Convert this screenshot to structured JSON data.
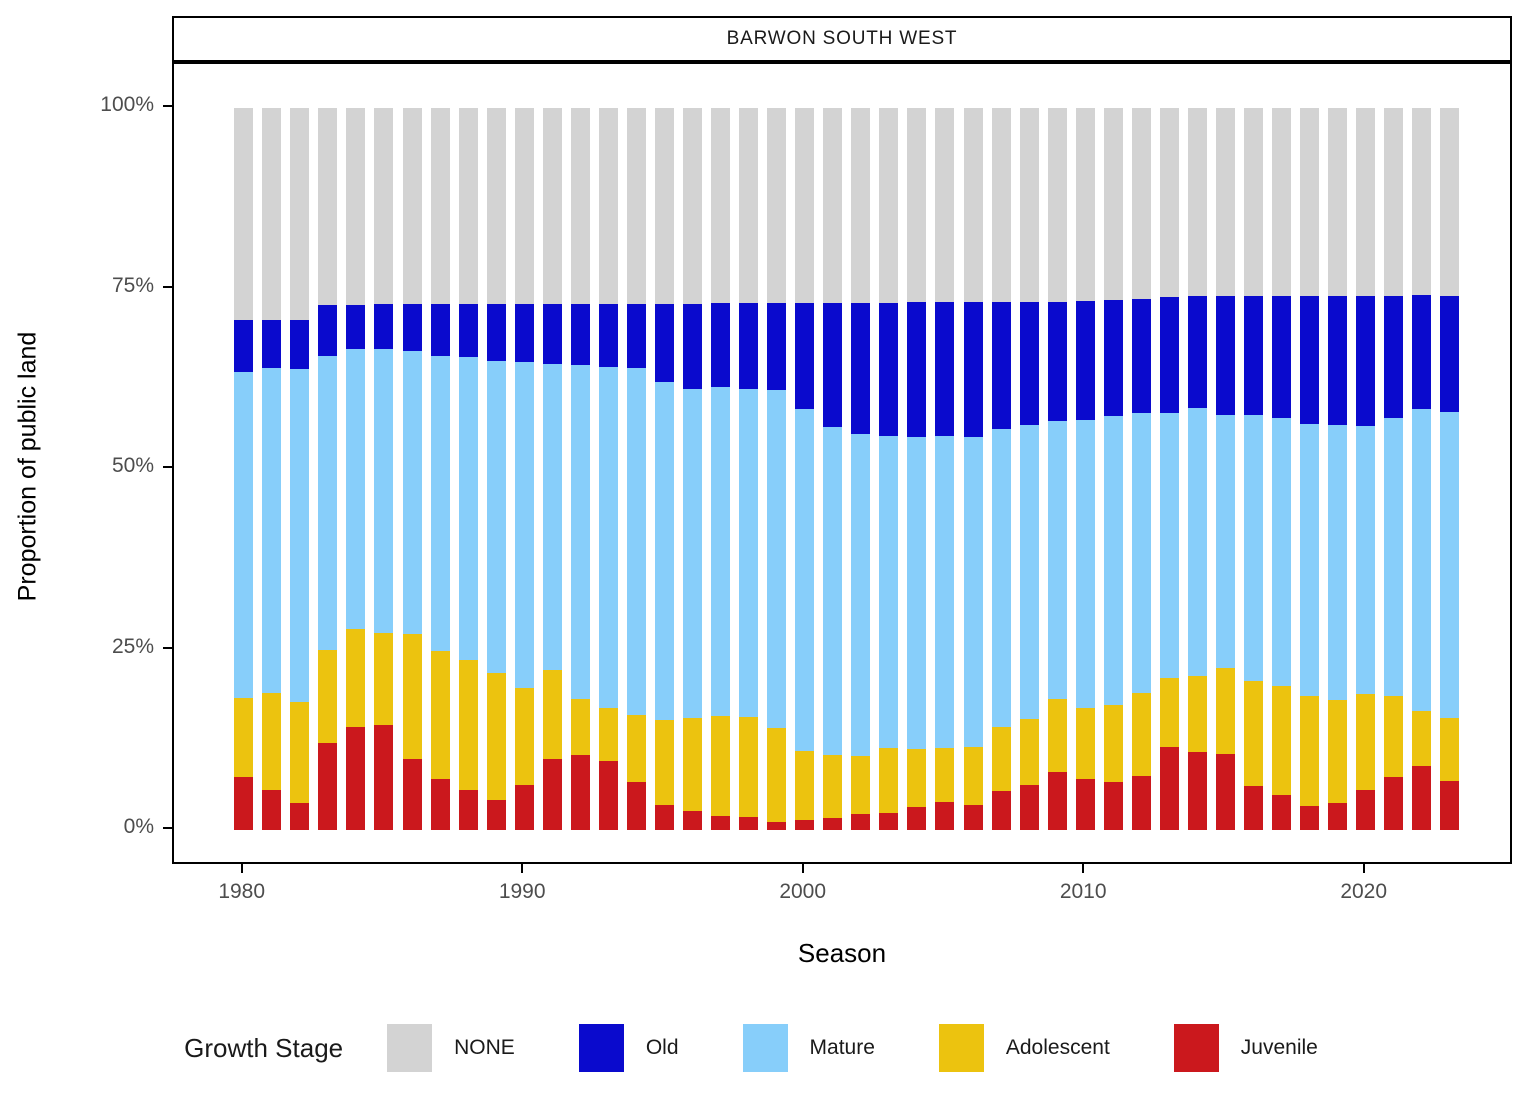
{
  "panel_title": "BARWON SOUTH WEST",
  "y_axis": {
    "title": "Proportion of public land",
    "tick_labels": [
      "0%",
      "25%",
      "50%",
      "75%",
      "100%"
    ],
    "tick_values": [
      0,
      25,
      50,
      75,
      100
    ]
  },
  "x_axis": {
    "title": "Season",
    "tick_labels": [
      "1980",
      "1990",
      "2000",
      "2010",
      "2020"
    ],
    "tick_values": [
      1980,
      1990,
      2000,
      2010,
      2020
    ]
  },
  "legend": {
    "title": "Growth Stage",
    "items": [
      {
        "label": "NONE",
        "color": "#d3d3d3"
      },
      {
        "label": "Old",
        "color": "#0a0acd"
      },
      {
        "label": "Mature",
        "color": "#87cefa"
      },
      {
        "label": "Adolescent",
        "color": "#ecc30f"
      },
      {
        "label": "Juvenile",
        "color": "#cb181d"
      }
    ]
  },
  "chart_data": {
    "type": "bar",
    "stacked": true,
    "title": "BARWON SOUTH WEST",
    "xlabel": "Season",
    "ylabel": "Proportion of public land",
    "ylim": [
      0,
      100
    ],
    "grid": false,
    "legend_position": "bottom",
    "units": "percent",
    "stack_order_bottom_to_top": [
      "Juvenile",
      "Adolescent",
      "Mature",
      "Old",
      "NONE"
    ],
    "x": [
      1980,
      1981,
      1982,
      1983,
      1984,
      1985,
      1986,
      1987,
      1988,
      1989,
      1990,
      1991,
      1992,
      1993,
      1994,
      1995,
      1996,
      1997,
      1998,
      1999,
      2000,
      2001,
      2002,
      2003,
      2004,
      2005,
      2006,
      2007,
      2008,
      2009,
      2010,
      2011,
      2012,
      2013,
      2014,
      2015,
      2016,
      2017,
      2018,
      2019,
      2020,
      2021,
      2022,
      2023
    ],
    "series": [
      {
        "name": "Juvenile",
        "color": "#cb181d",
        "values": [
          7.3,
          5.6,
          3.8,
          12.1,
          14.2,
          14.5,
          9.9,
          7.0,
          5.5,
          4.2,
          6.2,
          9.8,
          10.4,
          9.5,
          6.7,
          3.5,
          2.6,
          1.9,
          1.8,
          1.1,
          1.4,
          1.7,
          2.2,
          2.4,
          3.2,
          3.9,
          3.5,
          5.4,
          6.2,
          8.0,
          7.1,
          6.6,
          7.5,
          11.5,
          10.8,
          10.5,
          6.1,
          4.9,
          3.3,
          3.8,
          5.6,
          7.4,
          8.8,
          6.8
        ]
      },
      {
        "name": "Adolescent",
        "color": "#ecc30f",
        "values": [
          11.0,
          13.4,
          14.0,
          12.9,
          13.7,
          12.8,
          17.2,
          17.8,
          18.1,
          17.6,
          13.5,
          12.3,
          7.7,
          7.4,
          9.3,
          11.7,
          12.9,
          13.9,
          13.9,
          13.0,
          9.5,
          8.7,
          8.1,
          9.0,
          8.0,
          7.4,
          8.0,
          8.8,
          9.2,
          10.1,
          9.8,
          10.7,
          11.5,
          9.6,
          10.5,
          12.0,
          14.5,
          15.0,
          15.2,
          14.2,
          13.3,
          11.1,
          7.7,
          8.7
        ]
      },
      {
        "name": "Mature",
        "color": "#87cefa",
        "values": [
          45.2,
          45.0,
          46.0,
          40.7,
          38.7,
          39.3,
          39.3,
          40.9,
          41.9,
          43.2,
          45.1,
          42.5,
          46.3,
          47.3,
          48.0,
          46.9,
          45.6,
          45.5,
          45.4,
          46.9,
          47.4,
          45.4,
          44.6,
          43.2,
          43.2,
          43.3,
          42.9,
          41.3,
          40.7,
          38.6,
          39.9,
          40.0,
          38.8,
          36.7,
          37.1,
          35.0,
          36.9,
          37.2,
          37.8,
          38.1,
          37.1,
          38.5,
          41.8,
          42.4
        ]
      },
      {
        "name": "Old",
        "color": "#0a0acd",
        "values": [
          7.1,
          6.6,
          6.9,
          7.0,
          6.1,
          6.2,
          6.5,
          7.2,
          7.4,
          7.9,
          8.1,
          8.3,
          8.5,
          8.7,
          8.9,
          10.8,
          11.8,
          11.7,
          11.9,
          12.0,
          14.7,
          17.2,
          18.1,
          18.4,
          18.7,
          18.5,
          18.7,
          17.7,
          17.1,
          16.5,
          16.5,
          16.1,
          15.8,
          16.0,
          15.6,
          16.5,
          16.5,
          16.9,
          17.7,
          17.9,
          18.0,
          17.0,
          15.8,
          16.1
        ]
      },
      {
        "name": "NONE",
        "color": "#d3d3d3",
        "values": [
          29.4,
          29.4,
          29.3,
          27.3,
          27.3,
          27.2,
          27.1,
          27.1,
          27.1,
          27.1,
          27.1,
          27.1,
          27.1,
          27.1,
          27.1,
          27.1,
          27.1,
          27.0,
          27.0,
          27.0,
          27.0,
          27.0,
          27.0,
          27.0,
          26.9,
          26.9,
          26.9,
          26.8,
          26.8,
          26.8,
          26.7,
          26.6,
          26.4,
          26.2,
          26.0,
          26.0,
          26.0,
          26.0,
          26.0,
          26.0,
          26.0,
          26.0,
          25.9,
          26.0
        ]
      }
    ]
  }
}
